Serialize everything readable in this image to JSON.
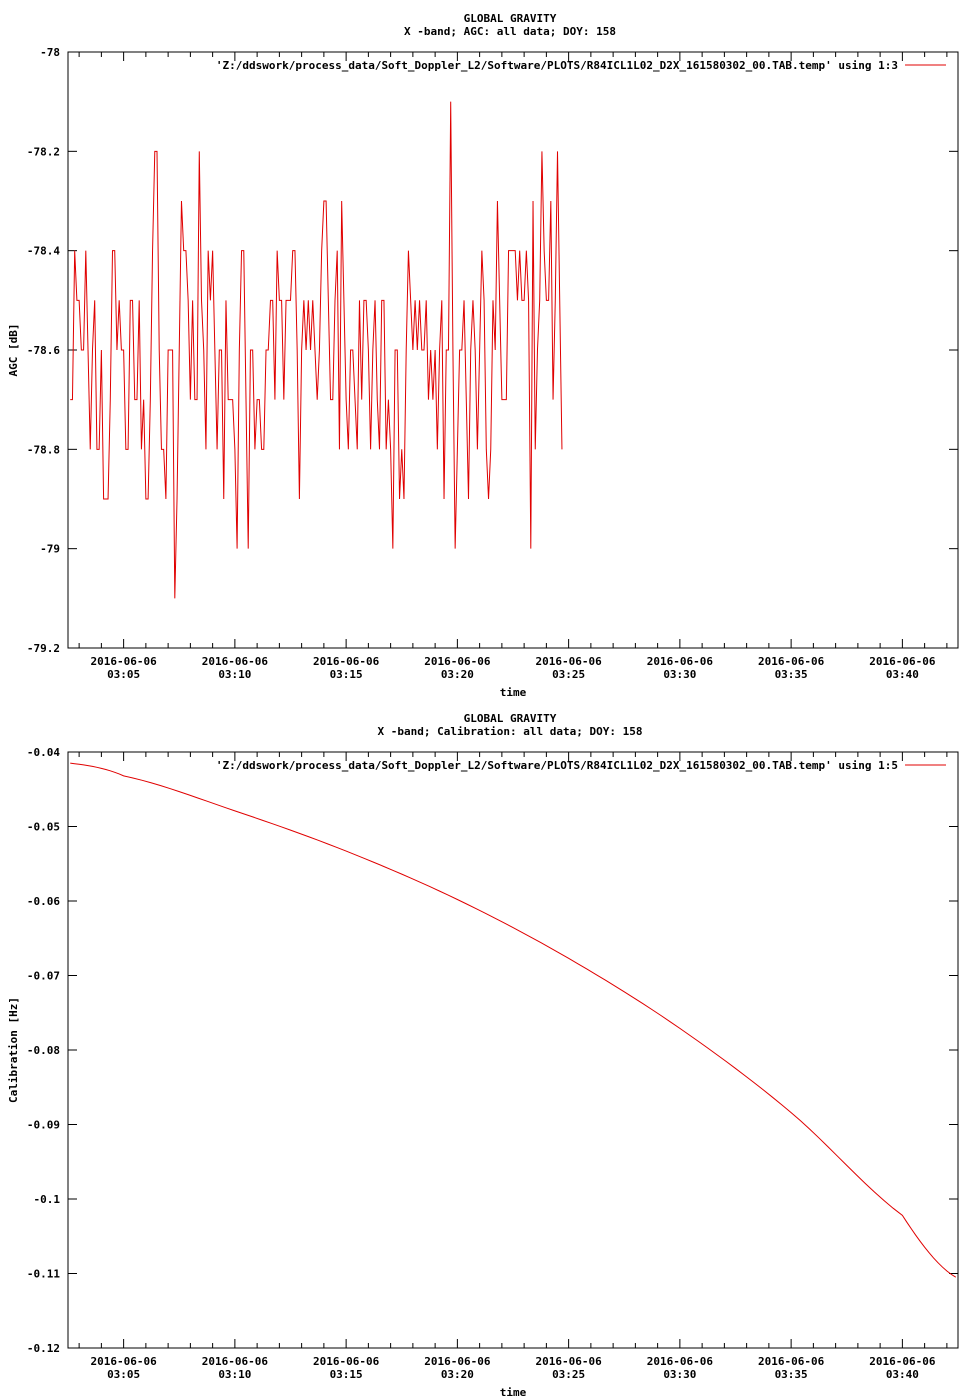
{
  "chart_data": [
    {
      "type": "line",
      "title": "GLOBAL GRAVITY",
      "subtitle": "X -band; AGC: all data; DOY: 158",
      "xlabel": "time",
      "ylabel": "AGC [dB]",
      "ylim": [
        -79.2,
        -78
      ],
      "xlim_minutes": [
        62.5,
        102.5
      ],
      "y_ticks": [
        "-78",
        "-78.2",
        "-78.4",
        "-78.6",
        "-78.8",
        "-79",
        "-79.2"
      ],
      "y_tick_values": [
        -78,
        -78.2,
        -78.4,
        -78.6,
        -78.8,
        -79,
        -79.2
      ],
      "x_tick_minutes": [
        65,
        70,
        75,
        80,
        85,
        90,
        95,
        100
      ],
      "x_tick_dates": [
        "2016-06-06",
        "2016-06-06",
        "2016-06-06",
        "2016-06-06",
        "2016-06-06",
        "2016-06-06",
        "2016-06-06",
        "2016-06-06"
      ],
      "x_tick_times": [
        "03:05",
        "03:10",
        "03:15",
        "03:20",
        "03:25",
        "03:30",
        "03:35",
        "03:40"
      ],
      "grid": false,
      "legend_position": "top-right",
      "series": [
        {
          "name": "'Z:/ddswork/process_data/Soft_Doppler_L2/Software/PLOTS/R84ICL1L02_D2X_161580302_00.TAB.temp' using 1:3",
          "color": "#e00000",
          "x_start_minutes": 62.6,
          "x_step_minutes": 0.1,
          "values": [
            -78.7,
            -78.7,
            -78.4,
            -78.5,
            -78.5,
            -78.6,
            -78.6,
            -78.4,
            -78.6,
            -78.8,
            -78.6,
            -78.5,
            -78.8,
            -78.8,
            -78.6,
            -78.9,
            -78.9,
            -78.9,
            -78.7,
            -78.4,
            -78.4,
            -78.6,
            -78.5,
            -78.6,
            -78.6,
            -78.8,
            -78.8,
            -78.5,
            -78.5,
            -78.7,
            -78.7,
            -78.5,
            -78.8,
            -78.7,
            -78.9,
            -78.9,
            -78.7,
            -78.4,
            -78.2,
            -78.2,
            -78.6,
            -78.8,
            -78.8,
            -78.9,
            -78.6,
            -78.6,
            -78.6,
            -79.1,
            -78.9,
            -78.6,
            -78.3,
            -78.4,
            -78.4,
            -78.5,
            -78.7,
            -78.5,
            -78.7,
            -78.7,
            -78.2,
            -78.5,
            -78.6,
            -78.8,
            -78.4,
            -78.5,
            -78.4,
            -78.6,
            -78.8,
            -78.6,
            -78.6,
            -78.9,
            -78.5,
            -78.7,
            -78.7,
            -78.7,
            -78.8,
            -79,
            -78.6,
            -78.4,
            -78.4,
            -78.7,
            -79,
            -78.6,
            -78.6,
            -78.8,
            -78.7,
            -78.7,
            -78.8,
            -78.8,
            -78.6,
            -78.6,
            -78.5,
            -78.5,
            -78.7,
            -78.4,
            -78.5,
            -78.5,
            -78.7,
            -78.5,
            -78.5,
            -78.5,
            -78.4,
            -78.4,
            -78.6,
            -78.9,
            -78.6,
            -78.5,
            -78.6,
            -78.5,
            -78.6,
            -78.5,
            -78.6,
            -78.7,
            -78.6,
            -78.4,
            -78.3,
            -78.3,
            -78.5,
            -78.7,
            -78.7,
            -78.5,
            -78.4,
            -78.8,
            -78.3,
            -78.5,
            -78.7,
            -78.8,
            -78.6,
            -78.6,
            -78.7,
            -78.8,
            -78.5,
            -78.7,
            -78.5,
            -78.5,
            -78.6,
            -78.8,
            -78.6,
            -78.5,
            -78.7,
            -78.8,
            -78.5,
            -78.5,
            -78.8,
            -78.7,
            -78.8,
            -79,
            -78.6,
            -78.6,
            -78.9,
            -78.8,
            -78.9,
            -78.6,
            -78.4,
            -78.5,
            -78.6,
            -78.5,
            -78.6,
            -78.5,
            -78.6,
            -78.6,
            -78.5,
            -78.7,
            -78.6,
            -78.7,
            -78.6,
            -78.8,
            -78.6,
            -78.5,
            -78.9,
            -78.6,
            -78.6,
            -78.1,
            -78.6,
            -79,
            -78.8,
            -78.6,
            -78.6,
            -78.5,
            -78.7,
            -78.9,
            -78.6,
            -78.5,
            -78.6,
            -78.8,
            -78.6,
            -78.4,
            -78.5,
            -78.8,
            -78.9,
            -78.8,
            -78.5,
            -78.6,
            -78.3,
            -78.5,
            -78.7,
            -78.7,
            -78.7,
            -78.4,
            -78.4,
            -78.4,
            -78.4,
            -78.5,
            -78.4,
            -78.5,
            -78.5,
            -78.4,
            -78.5,
            -79,
            -78.3,
            -78.8,
            -78.6,
            -78.5,
            -78.2,
            -78.4,
            -78.5,
            -78.5,
            -78.3,
            -78.7,
            -78.5,
            -78.2,
            -78.5,
            -78.8
          ]
        }
      ]
    },
    {
      "type": "line",
      "title": "GLOBAL GRAVITY",
      "subtitle": "X -band; Calibration: all data; DOY: 158",
      "xlabel": "time",
      "ylabel": "Calibration [Hz]",
      "ylim": [
        -0.12,
        -0.04
      ],
      "xlim_minutes": [
        62.5,
        102.5
      ],
      "y_ticks": [
        "-0.04",
        "-0.05",
        "-0.06",
        "-0.07",
        "-0.08",
        "-0.09",
        "-0.1",
        "-0.11",
        "-0.12"
      ],
      "y_tick_values": [
        -0.04,
        -0.05,
        -0.06,
        -0.07,
        -0.08,
        -0.09,
        -0.1,
        -0.11,
        -0.12
      ],
      "x_tick_minutes": [
        65,
        70,
        75,
        80,
        85,
        90,
        95,
        100
      ],
      "x_tick_dates": [
        "2016-06-06",
        "2016-06-06",
        "2016-06-06",
        "2016-06-06",
        "2016-06-06",
        "2016-06-06",
        "2016-06-06",
        "2016-06-06"
      ],
      "x_tick_times": [
        "03:05",
        "03:10",
        "03:15",
        "03:20",
        "03:25",
        "03:30",
        "03:35",
        "03:40"
      ],
      "grid": false,
      "legend_position": "top-right",
      "series": [
        {
          "name": "'Z:/ddswork/process_data/Soft_Doppler_L2/Software/PLOTS/R84ICL1L02_D2X_161580302_00.TAB.temp' using 1:5",
          "color": "#e00000",
          "x": [
            62.6,
            65,
            70,
            75,
            80,
            85,
            90,
            95,
            100,
            102.4
          ],
          "values": [
            -0.0415,
            -0.0432,
            -0.0479,
            -0.0533,
            -0.0598,
            -0.0677,
            -0.0771,
            -0.0884,
            -0.1022,
            -0.1105
          ]
        }
      ]
    }
  ]
}
